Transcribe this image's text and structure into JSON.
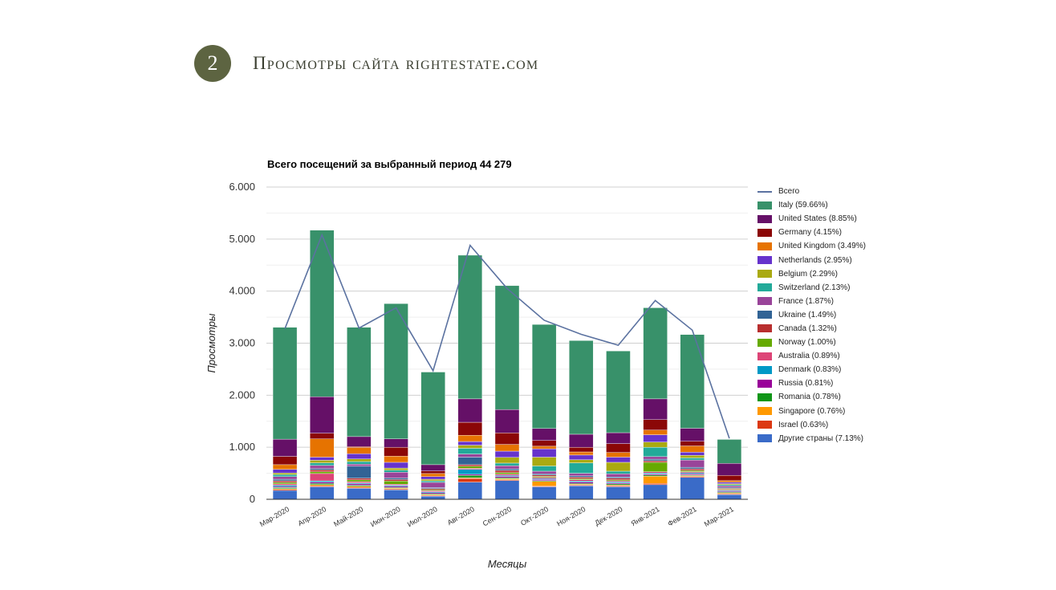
{
  "header": {
    "slide_number": "2",
    "title": "Просмотры сайта rightestate.com"
  },
  "chart_data": {
    "type": "bar",
    "stacked": true,
    "title": "Всего посещений за выбранный период 44 279",
    "xlabel": "Месяцы",
    "ylabel": "Просмотры",
    "ylim": [
      0,
      6000
    ],
    "yticks": [
      0,
      1000,
      2000,
      3000,
      4000,
      5000,
      6000
    ],
    "ytick_labels": [
      "0",
      "1.000",
      "2.000",
      "3.000",
      "4.000",
      "5.000",
      "6.000"
    ],
    "grid": true,
    "legend_position": "right",
    "categories": [
      "Мар-2020",
      "Апр-2020",
      "Май-2020",
      "Июн-2020",
      "Июл-2020",
      "Авг-2020",
      "Сен-2020",
      "Окт-2020",
      "Ноя-2020",
      "Дек-2020",
      "Янв-2021",
      "Фев-2021",
      "Мар-2021"
    ],
    "total_series": {
      "name": "Всего",
      "color": "#5b72a0",
      "values": [
        3280,
        5080,
        3290,
        3680,
        2470,
        4880,
        4050,
        3440,
        3170,
        2960,
        3820,
        3250,
        1170
      ]
    },
    "series": [
      {
        "name": "Другие страны (7.13%)",
        "color": "#3a6bc8",
        "values": [
          170,
          240,
          210,
          180,
          60,
          330,
          360,
          240,
          260,
          240,
          280,
          420,
          90
        ]
      },
      {
        "name": "Israel (0.63%)",
        "color": "#dc3912",
        "values": [
          20,
          20,
          20,
          20,
          15,
          70,
          15,
          15,
          15,
          20,
          25,
          20,
          15
        ]
      },
      {
        "name": "Singapore (0.76%)",
        "color": "#ff9900",
        "values": [
          15,
          20,
          20,
          15,
          15,
          15,
          20,
          90,
          15,
          15,
          140,
          15,
          15
        ]
      },
      {
        "name": "Romania (0.78%)",
        "color": "#109618",
        "values": [
          20,
          25,
          20,
          15,
          15,
          45,
          20,
          15,
          15,
          20,
          20,
          15,
          15
        ]
      },
      {
        "name": "Russia (0.81%)",
        "color": "#990099",
        "values": [
          20,
          25,
          25,
          20,
          20,
          20,
          25,
          20,
          25,
          20,
          20,
          20,
          15
        ]
      },
      {
        "name": "Denmark (0.83%)",
        "color": "#0099c6",
        "values": [
          25,
          25,
          20,
          20,
          20,
          95,
          20,
          20,
          20,
          20,
          20,
          20,
          15
        ]
      },
      {
        "name": "Australia (0.89%)",
        "color": "#dd4477",
        "values": [
          25,
          140,
          25,
          20,
          20,
          20,
          25,
          20,
          25,
          20,
          25,
          20,
          15
        ]
      },
      {
        "name": "Norway (1.00%)",
        "color": "#66aa00",
        "values": [
          30,
          35,
          35,
          60,
          20,
          40,
          30,
          20,
          20,
          20,
          180,
          25,
          15
        ]
      },
      {
        "name": "Canada (1.32%)",
        "color": "#b82e2e",
        "values": [
          30,
          35,
          30,
          30,
          20,
          30,
          40,
          25,
          30,
          30,
          30,
          30,
          15
        ]
      },
      {
        "name": "Ukraine (1.49%)",
        "color": "#316395",
        "values": [
          30,
          25,
          230,
          30,
          20,
          145,
          30,
          25,
          25,
          25,
          30,
          30,
          20
        ]
      },
      {
        "name": "France (1.87%)",
        "color": "#994499",
        "values": [
          50,
          60,
          40,
          110,
          100,
          60,
          60,
          50,
          50,
          60,
          50,
          140,
          30
        ]
      },
      {
        "name": "Switzerland (2.13%)",
        "color": "#22aa99",
        "values": [
          40,
          50,
          50,
          40,
          30,
          110,
          50,
          100,
          200,
          50,
          180,
          40,
          20
        ]
      },
      {
        "name": "Belgium (2.29%)",
        "color": "#aaaa11",
        "values": [
          30,
          50,
          50,
          40,
          30,
          60,
          110,
          170,
          60,
          170,
          100,
          50,
          20
        ]
      },
      {
        "name": "Netherlands (2.95%)",
        "color": "#6633cc",
        "values": [
          70,
          60,
          100,
          110,
          50,
          70,
          120,
          160,
          90,
          100,
          140,
          60,
          30
        ]
      },
      {
        "name": "United Kingdom (3.49%)",
        "color": "#e67300",
        "values": [
          90,
          350,
          120,
          120,
          60,
          120,
          130,
          50,
          60,
          90,
          90,
          120,
          30
        ]
      },
      {
        "name": "Germany (4.15%)",
        "color": "#8b0707",
        "values": [
          160,
          110,
          20,
          170,
          50,
          250,
          220,
          110,
          90,
          170,
          200,
          90,
          100
        ]
      },
      {
        "name": "United States (8.85%)",
        "color": "#651067",
        "values": [
          330,
          700,
          190,
          160,
          120,
          450,
          450,
          230,
          250,
          210,
          400,
          250,
          230
        ]
      },
      {
        "name": "Italy (59.66%)",
        "color": "#38916a",
        "values": [
          2150,
          3200,
          2100,
          2600,
          1780,
          2760,
          2380,
          2000,
          1800,
          1570,
          1750,
          1800,
          460
        ]
      }
    ]
  }
}
